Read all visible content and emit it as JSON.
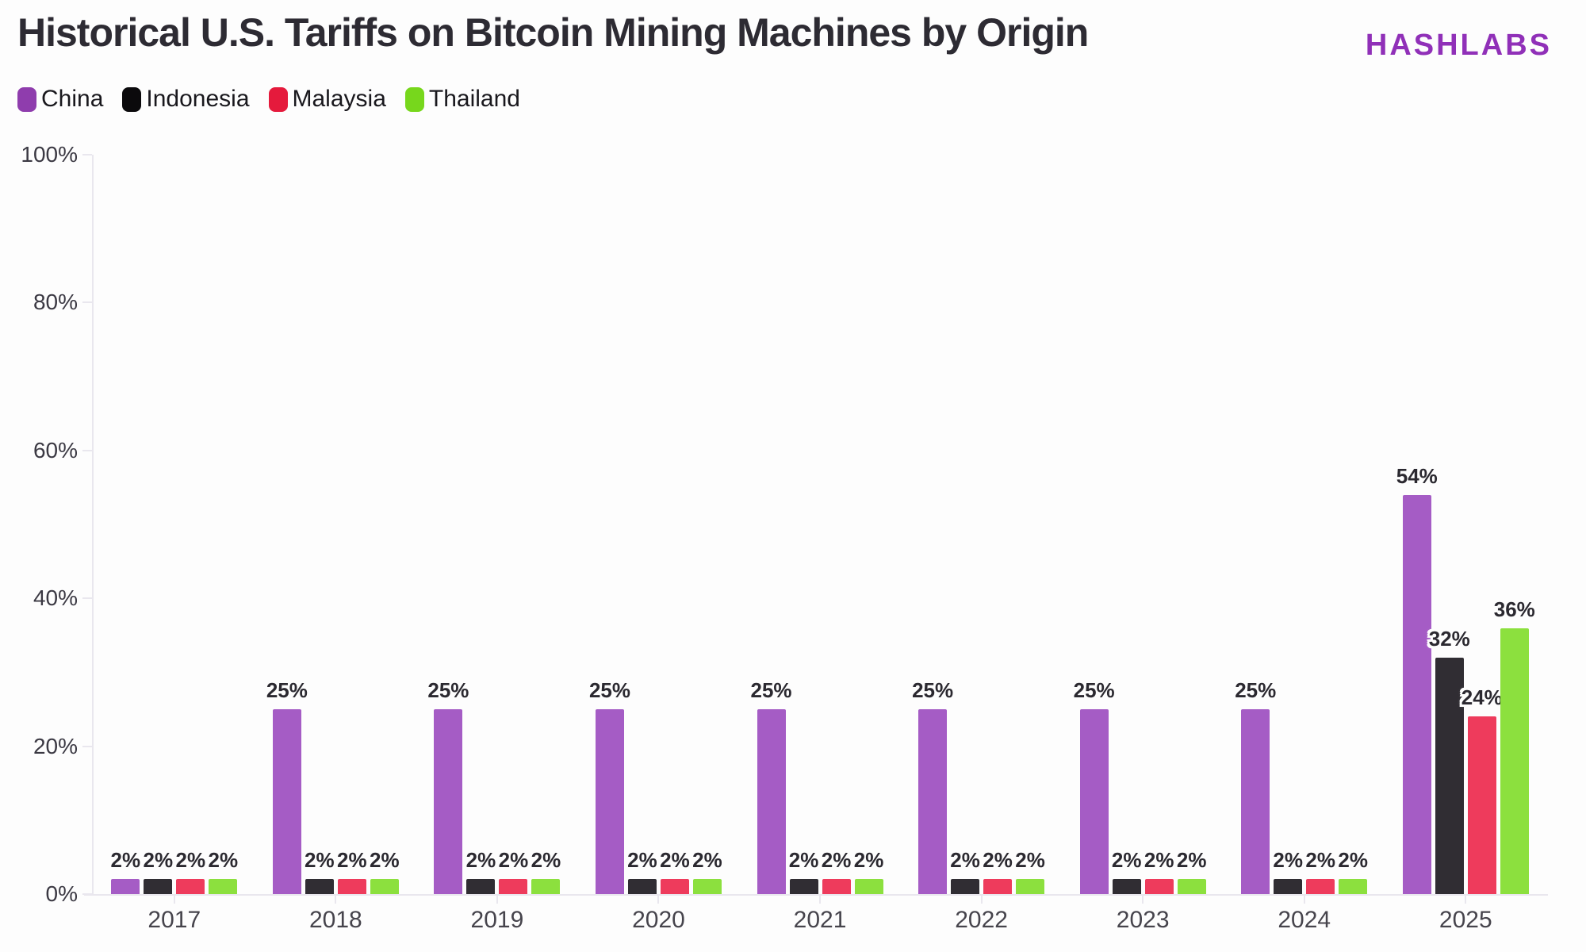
{
  "header": {
    "title": "Historical U.S. Tariffs on Bitcoin Mining Machines by Origin",
    "logo_text": "HASHLABS",
    "logo_color": "#9030b8",
    "title_color": "#2d2b33"
  },
  "colors": {
    "background": "#fdfdfd",
    "axis": "#e9e7ee",
    "y_tick_label": "#3b3943",
    "x_tick_label": "#46444c",
    "value_label": "#2b2930",
    "legend_text": "#19181d"
  },
  "chart_data": {
    "type": "bar",
    "title": "Historical U.S. Tariffs on Bitcoin Mining Machines by Origin",
    "categories": [
      "2017",
      "2018",
      "2019",
      "2020",
      "2021",
      "2022",
      "2023",
      "2024",
      "2025"
    ],
    "series": [
      {
        "name": "China",
        "bar_color": "#a55cc5",
        "legend_color": "#8f3dad",
        "values": [
          2,
          25,
          25,
          25,
          25,
          25,
          25,
          25,
          54
        ]
      },
      {
        "name": "Indonesia",
        "bar_color": "#302d33",
        "legend_color": "#0b0a0c",
        "values": [
          2,
          2,
          2,
          2,
          2,
          2,
          2,
          2,
          32
        ]
      },
      {
        "name": "Malaysia",
        "bar_color": "#ee3b5c",
        "legend_color": "#e51a3c",
        "values": [
          2,
          2,
          2,
          2,
          2,
          2,
          2,
          2,
          24
        ]
      },
      {
        "name": "Thailand",
        "bar_color": "#8ce03e",
        "legend_color": "#77d71c",
        "values": [
          2,
          2,
          2,
          2,
          2,
          2,
          2,
          2,
          36
        ]
      }
    ],
    "y_ticks": [
      {
        "label": "0%",
        "value": 0
      },
      {
        "label": "20%",
        "value": 20
      },
      {
        "label": "40%",
        "value": 40
      },
      {
        "label": "60%",
        "value": 60
      },
      {
        "label": "80%",
        "value": 80
      },
      {
        "label": "100%",
        "value": 100
      }
    ],
    "ylim": [
      0,
      100
    ],
    "xlabel": "",
    "ylabel": "",
    "grid": false,
    "legend_position": "top-left",
    "value_suffix": "%"
  }
}
